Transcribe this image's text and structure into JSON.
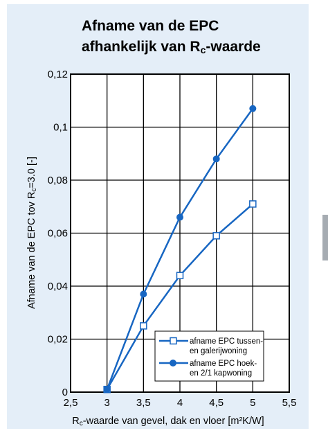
{
  "colors": {
    "panel": "#e4eef8",
    "series": "#1766c2",
    "grid": "#000000"
  },
  "chart_data": {
    "type": "line",
    "title_line1": "Afname van de EPC",
    "title_line2_pre": "afhankelijk van R",
    "title_line2_sub": "c",
    "title_line2_post": "-waarde",
    "xlabel_pre": "R",
    "xlabel_sub": "c",
    "xlabel_post": "-waarde van gevel, dak en vloer [m²K/W]",
    "ylabel_pre": "Afname van de EPC tov R",
    "ylabel_sub": "c",
    "ylabel_post": "=3.0 [-]",
    "xlim": [
      2.5,
      5.5
    ],
    "ylim": [
      0,
      0.12
    ],
    "x_ticks": [
      2.5,
      3,
      3.5,
      4,
      4.5,
      5,
      5.5
    ],
    "x_tick_labels": [
      "2,5",
      "3",
      "3,5",
      "4",
      "4,5",
      "5",
      "5,5"
    ],
    "y_ticks": [
      0,
      0.02,
      0.04,
      0.06,
      0.08,
      0.1,
      0.12
    ],
    "y_tick_labels": [
      "0",
      "0,02",
      "0,04",
      "0,06",
      "0,08",
      "0,1",
      "0,12"
    ],
    "grid": true,
    "legend_position": "bottom-right",
    "series": [
      {
        "name_line1": "afname EPC tussen-",
        "name_line2": "en galerijwoning",
        "marker": "open-square",
        "x": [
          3,
          3.5,
          4,
          4.5,
          5
        ],
        "y": [
          0.001,
          0.025,
          0.044,
          0.059,
          0.071
        ]
      },
      {
        "name_line1": "afname EPC hoek-",
        "name_line2": "en 2/1 kapwoning",
        "marker": "filled-circle",
        "x": [
          3,
          3.5,
          4,
          4.5,
          5
        ],
        "y": [
          0.001,
          0.037,
          0.066,
          0.088,
          0.107
        ]
      }
    ]
  }
}
